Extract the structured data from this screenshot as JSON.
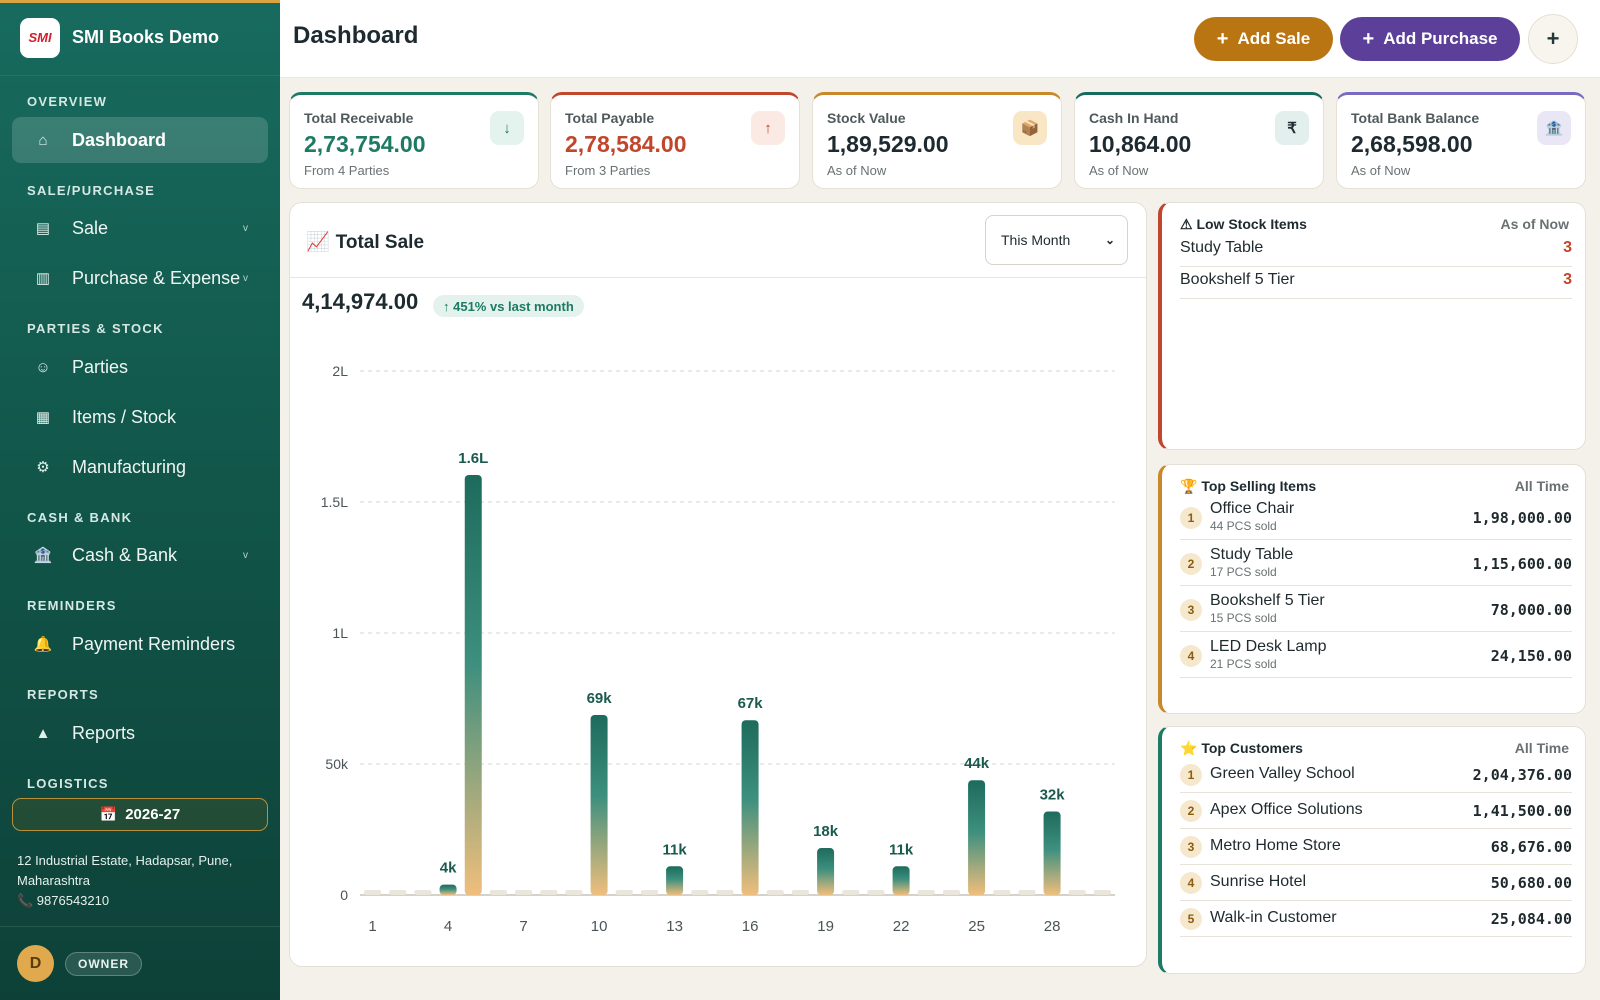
{
  "app": {
    "name": "SMI Books Demo",
    "logo_text": "SMI"
  },
  "sidebar": {
    "sections": [
      "OVERVIEW",
      "SALE/PURCHASE",
      "PARTIES & STOCK",
      "CASH & BANK",
      "REMINDERS",
      "REPORTS",
      "LOGISTICS"
    ],
    "items": [
      {
        "label": "Dashboard",
        "icon": "home-icon",
        "glyph": "⌂"
      },
      {
        "label": "Sale",
        "icon": "document-icon",
        "glyph": "▤",
        "chevron": "v"
      },
      {
        "label": "Purchase & Expense",
        "icon": "receipt-icon",
        "glyph": "▥",
        "chevron": "v"
      },
      {
        "label": "Parties",
        "icon": "user-icon",
        "glyph": "☺"
      },
      {
        "label": "Items / Stock",
        "icon": "grid-icon",
        "glyph": "▦"
      },
      {
        "label": "Manufacturing",
        "icon": "gear-icon",
        "glyph": "⚙"
      },
      {
        "label": "Cash & Bank",
        "icon": "bank-icon",
        "glyph": "🏦",
        "chevron": "v"
      },
      {
        "label": "Payment Reminders",
        "icon": "bell-icon",
        "glyph": "🔔"
      },
      {
        "label": "Reports",
        "icon": "triangle-icon",
        "glyph": "▲"
      }
    ],
    "financial_year": "2026-27",
    "address": "12 Industrial Estate, Hadapsar, Pune, Maharashtra",
    "phone": "📞 9876543210",
    "user_initial": "D",
    "role": "OWNER"
  },
  "header": {
    "title": "Dashboard",
    "add_sale": "Add Sale",
    "add_purchase": "Add Purchase",
    "plus": "+"
  },
  "stats": [
    {
      "title": "Total Receivable",
      "value": "2,73,754.00",
      "sub": "From 4 Parties",
      "icon": "↓",
      "color": "#1d7a63",
      "icon_bg": "#e4f3ee",
      "accent": "#1d7a63"
    },
    {
      "title": "Total Payable",
      "value": "2,78,584.00",
      "sub": "From 3 Parties",
      "icon": "↑",
      "color": "#c0462c",
      "icon_bg": "#fbe9e4",
      "accent": "#c0462c"
    },
    {
      "title": "Stock Value",
      "value": "1,89,529.00",
      "sub": "As of Now",
      "icon": "📦",
      "color": "#1d2a30",
      "icon_bg": "#f8e6c4",
      "accent": "#c9892a"
    },
    {
      "title": "Cash In Hand",
      "value": "10,864.00",
      "sub": "As of Now",
      "icon": "₹",
      "color": "#1d2a30",
      "icon_bg": "#e2efec",
      "accent": "#176b5e"
    },
    {
      "title": "Total Bank Balance",
      "value": "2,68,598.00",
      "sub": "As of Now",
      "icon": "🏦",
      "color": "#1d2a30",
      "icon_bg": "#e9e7f6",
      "accent": "#7a6bc2"
    }
  ],
  "sales_card": {
    "title": "Total Sale",
    "title_icon": "📈",
    "period": "This Month",
    "total": "4,14,974.00",
    "growth": "↑ 451% vs last month"
  },
  "chart_data": {
    "type": "bar",
    "x": [
      1,
      2,
      3,
      4,
      5,
      6,
      7,
      8,
      9,
      10,
      11,
      12,
      13,
      14,
      15,
      16,
      17,
      18,
      19,
      20,
      21,
      22,
      23,
      24,
      25,
      26,
      27,
      28,
      29,
      30
    ],
    "values": [
      0,
      0,
      0,
      4000,
      0,
      0,
      0,
      0,
      0,
      69000,
      0,
      0,
      11000,
      0,
      0,
      67000,
      0,
      0,
      18000,
      0,
      0,
      11000,
      0,
      0,
      44000,
      0,
      0,
      32000,
      0,
      0
    ],
    "data_labels": {
      "4": "4k",
      "10": "69k",
      "13": "11k",
      "16": "67k",
      "19": "18k",
      "22": "11k",
      "25": "44k",
      "28": "32k"
    },
    "outlier": {
      "x": 5,
      "value": 160000,
      "label": "1.6L"
    },
    "y_ticks": [
      "0",
      "50k",
      "1L",
      "1.5L",
      "2L"
    ],
    "x_ticks": [
      "1",
      "4",
      "7",
      "10",
      "13",
      "16",
      "19",
      "22",
      "25",
      "28"
    ],
    "grid": true
  },
  "low_stock": {
    "title": "⚠ Low Stock Items",
    "meta": "As of Now",
    "items": [
      {
        "name": "Study Table",
        "qty": "3"
      },
      {
        "name": "Bookshelf 5 Tier",
        "qty": "3"
      }
    ]
  },
  "top_selling": {
    "title": "🏆 Top Selling Items",
    "meta": "All Time",
    "items": [
      {
        "rank": "1",
        "name": "Office Chair",
        "sub": "44 PCS sold",
        "amount": "1,98,000.00"
      },
      {
        "rank": "2",
        "name": "Study Table",
        "sub": "17 PCS sold",
        "amount": "1,15,600.00"
      },
      {
        "rank": "3",
        "name": "Bookshelf 5 Tier",
        "sub": "15 PCS sold",
        "amount": "78,000.00"
      },
      {
        "rank": "4",
        "name": "LED Desk Lamp",
        "sub": "21 PCS sold",
        "amount": "24,150.00"
      }
    ]
  },
  "top_customers": {
    "title": "⭐ Top Customers",
    "meta": "All Time",
    "items": [
      {
        "rank": "1",
        "name": "Green Valley School",
        "amount": "2,04,376.00"
      },
      {
        "rank": "2",
        "name": "Apex Office Solutions",
        "amount": "1,41,500.00"
      },
      {
        "rank": "3",
        "name": "Metro Home Store",
        "amount": "68,676.00"
      },
      {
        "rank": "4",
        "name": "Sunrise Hotel",
        "amount": "50,680.00"
      },
      {
        "rank": "5",
        "name": "Walk-in Customer",
        "amount": "25,084.00"
      }
    ]
  }
}
